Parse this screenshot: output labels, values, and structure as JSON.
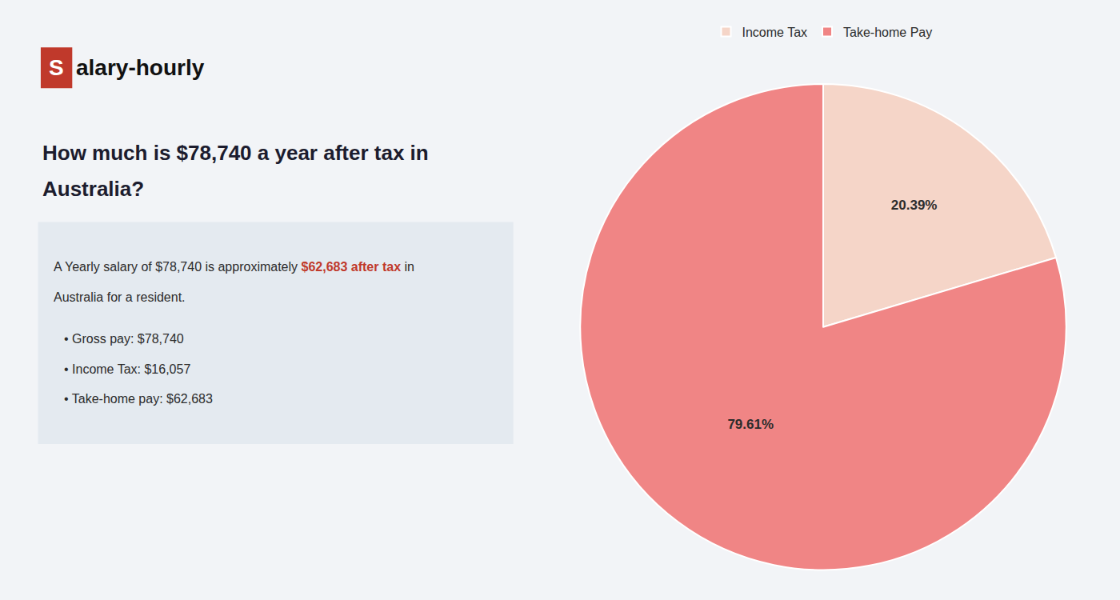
{
  "chart_data": {
    "type": "pie",
    "title": "How much is $78,740 a year after tax in Australia?",
    "annotations": [
      "S",
      "alary-hourly",
      "A Yearly salary of $78,740 is approximately ",
      "$62,683 after tax",
      " in",
      "Australia for a resident.",
      "• Gross pay: $78,740",
      "• Income Tax: $16,057",
      "• Take-home pay: $62,683"
    ],
    "categories": [
      "Income Tax",
      "Take-home Pay"
    ],
    "values": [
      20.39,
      79.61
    ],
    "value_labels": [
      "20.39%",
      "79.61%"
    ],
    "colors": [
      "#f5d5c8",
      "#f08585"
    ],
    "data_labels": true,
    "legend": "top"
  }
}
